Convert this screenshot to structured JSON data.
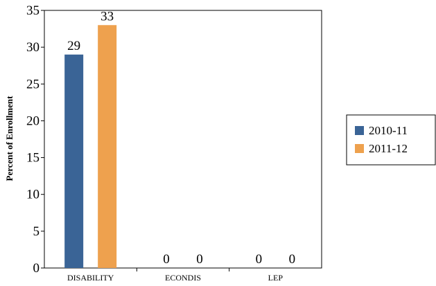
{
  "chart_data": {
    "type": "bar",
    "categories": [
      "DISABILITY",
      "ECONDIS",
      "LEP"
    ],
    "series": [
      {
        "name": "2010-11",
        "values": [
          29,
          0,
          0
        ],
        "color": "#3a6496"
      },
      {
        "name": "2011-12",
        "values": [
          33,
          0,
          0
        ],
        "color": "#eea14e"
      }
    ],
    "ylabel": "Percent of Enrollment",
    "ylim": [
      0,
      35
    ],
    "yticks": [
      0,
      5,
      10,
      15,
      20,
      25,
      30,
      35
    ],
    "data_labels": true,
    "grid": false,
    "legend_position": "right"
  }
}
